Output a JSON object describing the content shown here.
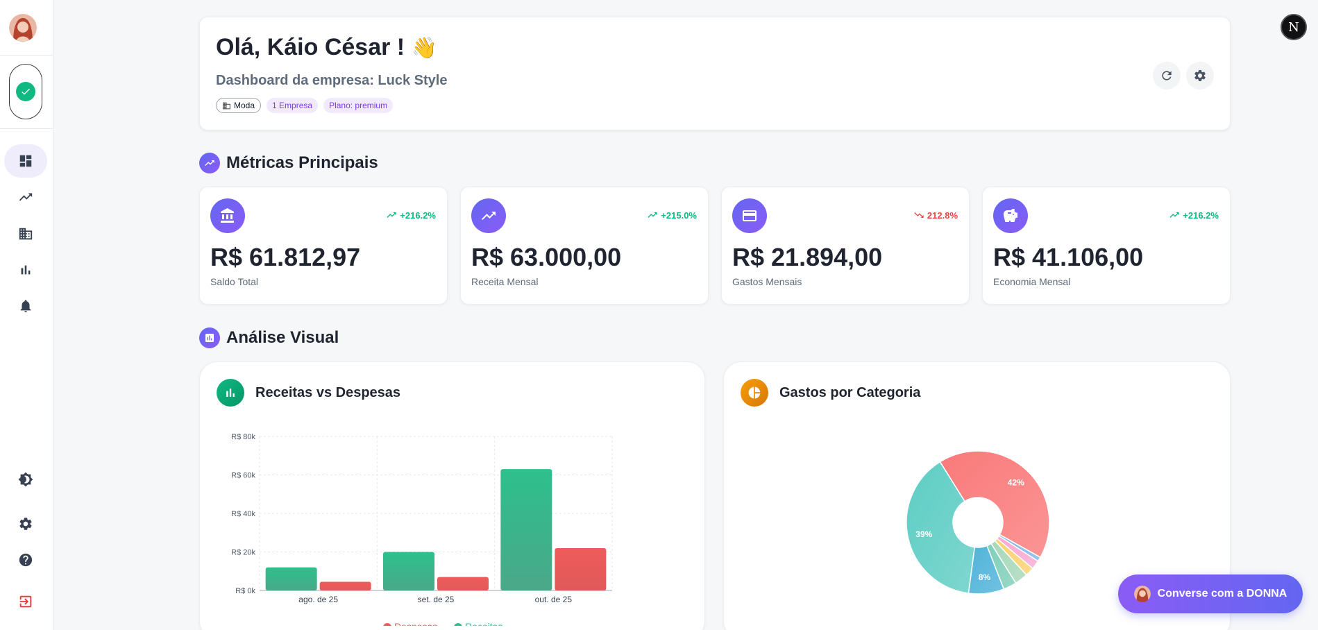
{
  "header": {
    "greeting": "Olá, Káio César !",
    "wave_emoji": "👋",
    "subtitle": "Dashboard da empresa: Luck Style",
    "tags": [
      "Moda",
      "1 Empresa",
      "Plano: premium"
    ],
    "refresh_icon": "refresh-icon",
    "settings_icon": "gear-icon"
  },
  "corner_badge": "N",
  "sidebar": {
    "items": [
      {
        "icon": "dashboard-icon",
        "active": true
      },
      {
        "icon": "trending-up-icon",
        "active": false
      },
      {
        "icon": "building-icon",
        "active": false
      },
      {
        "icon": "bar-chart-icon",
        "active": false
      },
      {
        "icon": "bell-icon",
        "active": false
      }
    ],
    "bottom_items": [
      {
        "icon": "theme-toggle-icon"
      },
      {
        "icon": "gear-icon"
      },
      {
        "icon": "help-icon"
      },
      {
        "icon": "logout-icon"
      }
    ]
  },
  "metrics_section": {
    "title": "Métricas Principais",
    "cards": [
      {
        "icon": "bank-icon",
        "trend": "+216.2%",
        "direction": "up",
        "value": "R$ 61.812,97",
        "label": "Saldo Total"
      },
      {
        "icon": "trending-up-icon",
        "trend": "+215.0%",
        "direction": "up",
        "value": "R$ 63.000,00",
        "label": "Receita Mensal"
      },
      {
        "icon": "credit-card-icon",
        "trend": "212.8%",
        "direction": "down",
        "value": "R$ 21.894,00",
        "label": "Gastos Mensais"
      },
      {
        "icon": "piggy-bank-icon",
        "trend": "+216.2%",
        "direction": "up",
        "value": "R$ 41.106,00",
        "label": "Economia Mensal"
      }
    ]
  },
  "analysis_section": {
    "title": "Análise Visual"
  },
  "colors": {
    "receita": "#2fbf8c",
    "despesa": "#ef5b5b",
    "accent": "#7c3aed"
  },
  "chart_data": [
    {
      "type": "bar",
      "title": "Receitas vs Despesas",
      "categories": [
        "ago. de 25",
        "set. de 25",
        "out. de 25"
      ],
      "series": [
        {
          "name": "Receitas",
          "values": [
            12000,
            20000,
            63000
          ]
        },
        {
          "name": "Despesas",
          "values": [
            4500,
            7000,
            22000
          ]
        }
      ],
      "yticks": [
        "R$ 0k",
        "R$ 20k",
        "R$ 40k",
        "R$ 60k",
        "R$ 80k"
      ],
      "ylim": [
        0,
        80000
      ],
      "grid": true
    },
    {
      "type": "pie",
      "title": "Gastos por Categoria",
      "slices": [
        {
          "label": "",
          "value": 42,
          "show_label": "42%",
          "color": "#fa7a7a"
        },
        {
          "label": "",
          "value": 1,
          "show_label": "",
          "color": "#7fb8e8"
        },
        {
          "label": "",
          "value": 2,
          "show_label": "",
          "color": "#f9a8d4"
        },
        {
          "label": "",
          "value": 2,
          "show_label": "",
          "color": "#fcd170"
        },
        {
          "label": "",
          "value": 3,
          "show_label": "",
          "color": "#a8d8b9"
        },
        {
          "label": "",
          "value": 3,
          "show_label": "",
          "color": "#7fcfb8"
        },
        {
          "label": "",
          "value": 8,
          "show_label": "8%",
          "color": "#4fb3d9"
        },
        {
          "label": "",
          "value": 39,
          "show_label": "39%",
          "color": "#5ecdc4"
        }
      ]
    }
  ],
  "chat_button": {
    "label": "Converse com a DONNA"
  }
}
